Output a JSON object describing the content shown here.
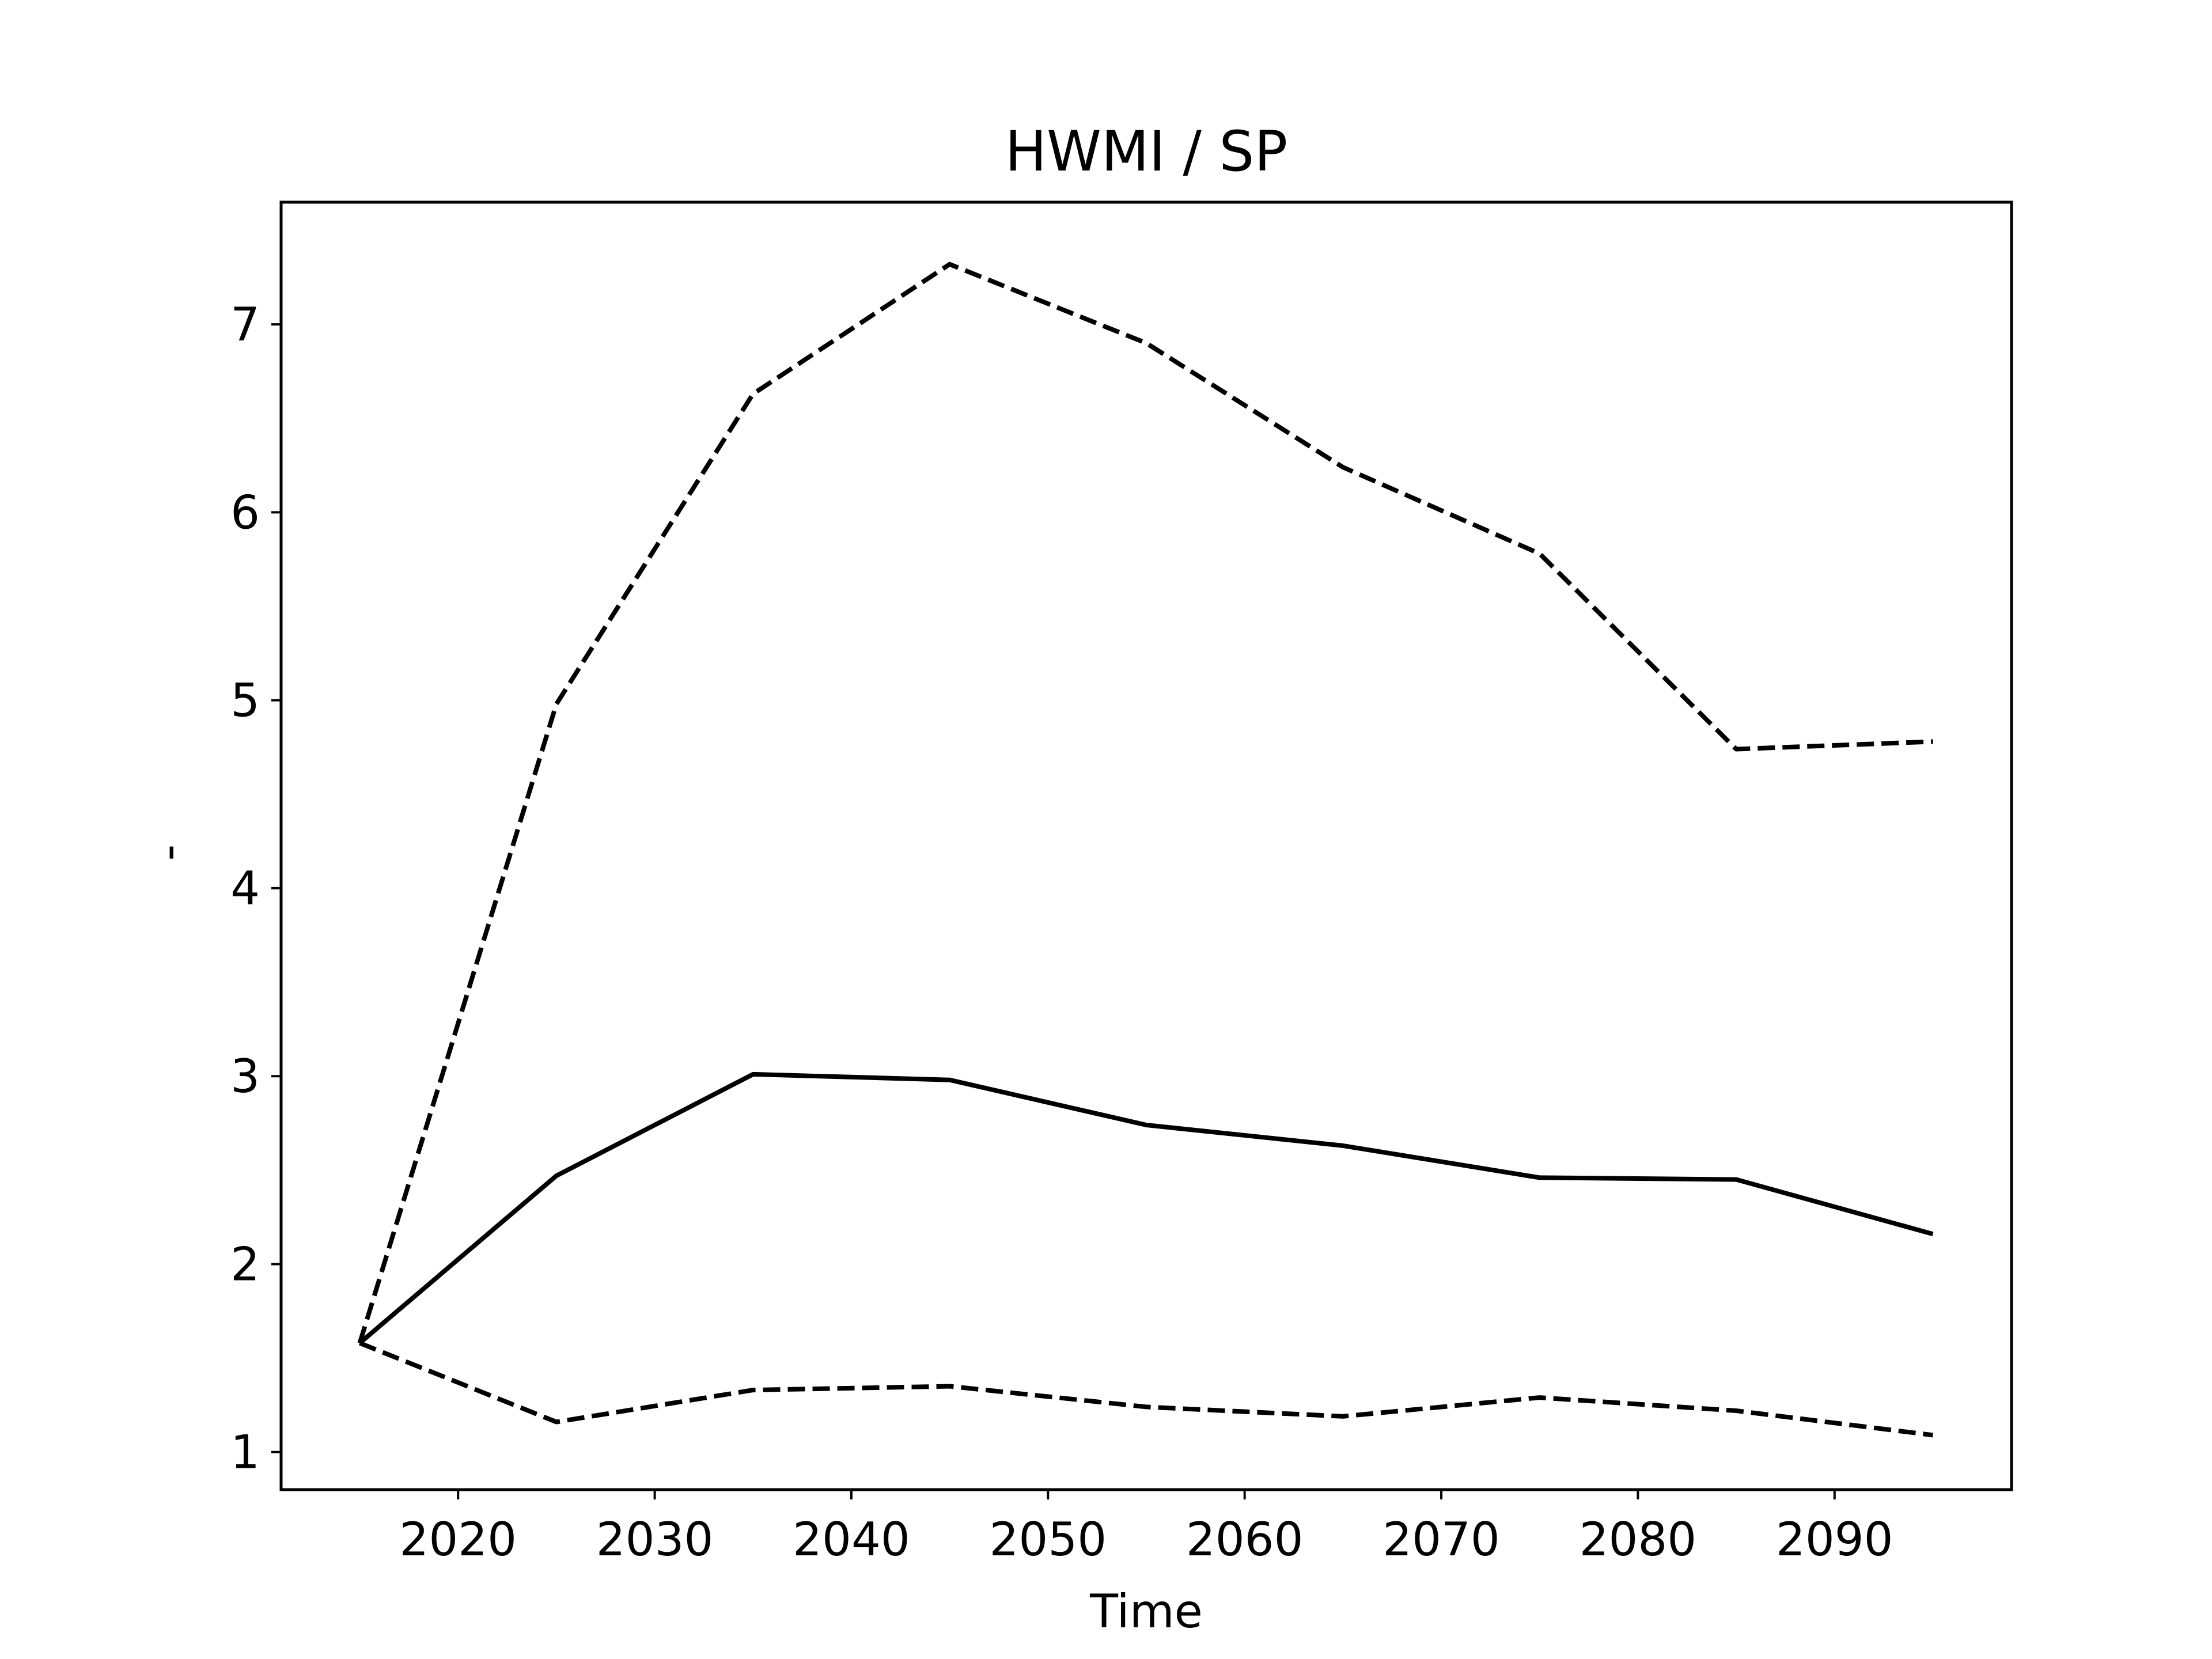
{
  "chart_data": {
    "type": "line",
    "title": "HWMI / SP",
    "xlabel": "Time",
    "ylabel": "-",
    "xlim": [
      2011,
      2099
    ],
    "ylim": [
      0.8,
      7.65
    ],
    "x_ticks": [
      2020,
      2030,
      2040,
      2050,
      2060,
      2070,
      2080,
      2090
    ],
    "y_ticks": [
      1,
      2,
      3,
      4,
      5,
      6,
      7
    ],
    "grid": false,
    "legend": "none",
    "color": "#000000",
    "x": [
      2015,
      2025,
      2035,
      2045,
      2055,
      2065,
      2075,
      2085,
      2095
    ],
    "series": [
      {
        "style": "dashed",
        "values": [
          1.58,
          4.98,
          6.63,
          7.32,
          6.9,
          6.24,
          5.78,
          4.74,
          4.78
        ]
      },
      {
        "style": "solid",
        "values": [
          1.58,
          2.47,
          3.01,
          2.98,
          2.74,
          2.63,
          2.46,
          2.45,
          2.16
        ]
      },
      {
        "style": "dashed",
        "values": [
          1.58,
          1.16,
          1.33,
          1.35,
          1.24,
          1.19,
          1.29,
          1.22,
          1.09
        ]
      }
    ]
  }
}
